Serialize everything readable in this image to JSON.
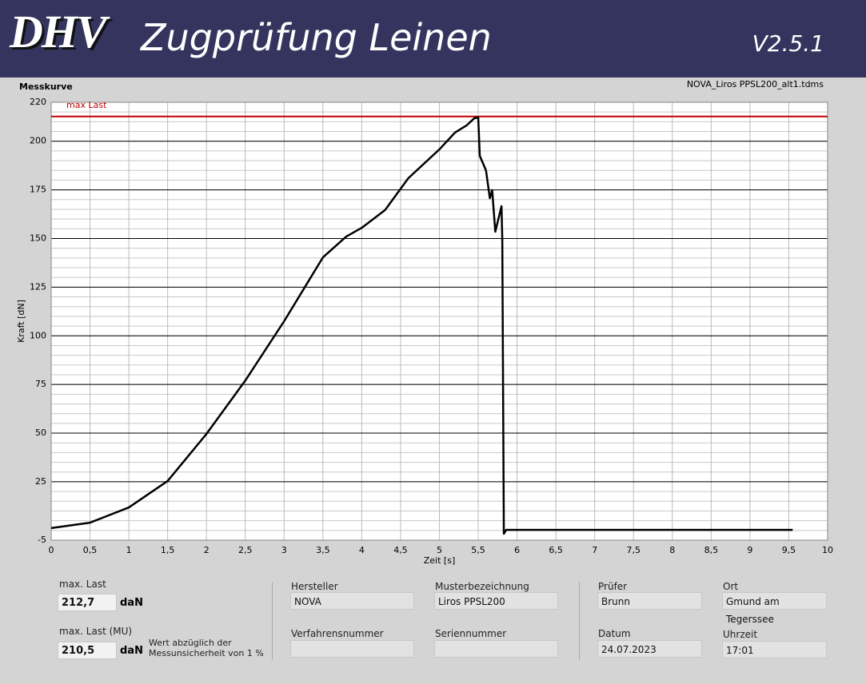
{
  "header": {
    "logo": "DHV",
    "title": "Zugprüfung Leinen",
    "version": "V2.5.1"
  },
  "chart_data": {
    "type": "line",
    "title": "Messkurve",
    "subtitle": "NOVA_Liros PPSL200_alt1.tdms",
    "x_label": "Zeit [s]",
    "y_label": "Kraft [dN]",
    "xlim": [
      0,
      10
    ],
    "ylim": [
      -5,
      220
    ],
    "xticks": [
      0,
      {
        "value": 0.5,
        "label": "0,5"
      },
      1,
      {
        "value": 1.5,
        "label": "1,5"
      },
      2,
      {
        "value": 2.5,
        "label": "2,5"
      },
      3,
      {
        "value": 3.5,
        "label": "3,5"
      },
      4,
      {
        "value": 4.5,
        "label": "4,5"
      },
      5,
      {
        "value": 5.5,
        "label": "5,5"
      },
      6,
      {
        "value": 6.5,
        "label": "6,5"
      },
      7,
      {
        "value": 7.5,
        "label": "7,5"
      },
      8,
      {
        "value": 8.5,
        "label": "8,5"
      },
      9,
      {
        "value": 9.5,
        "label": "9,5"
      },
      10
    ],
    "yticks": [
      -5,
      25,
      50,
      75,
      100,
      125,
      150,
      175,
      200,
      220
    ],
    "yminor": 5,
    "grid": true,
    "color": "#000000",
    "x": [
      0,
      0.5,
      1.0,
      1.5,
      2.0,
      2.5,
      3.0,
      3.5,
      3.8,
      4.0,
      4.3,
      4.6,
      5.0,
      5.2,
      5.35,
      5.45,
      5.5,
      5.52,
      5.6,
      5.65,
      5.68,
      5.72,
      5.8,
      5.81,
      5.83,
      5.86,
      9.55
    ],
    "values": [
      1.2,
      4,
      11.8,
      25.4,
      49.6,
      77,
      107.5,
      140.3,
      151,
      155.5,
      164.6,
      181,
      195.8,
      204.4,
      208.1,
      211.8,
      212.2,
      192.5,
      185,
      170.7,
      174.8,
      153.5,
      166.6,
      149.4,
      -1.7,
      0.3,
      0.3
    ],
    "reference_lines": [
      {
        "label": "max Last",
        "value": 212.7,
        "color": "#c00000"
      }
    ]
  },
  "results": {
    "max_label": "max. Last",
    "max_value": "212,7",
    "max_unit": "daN",
    "mu_label": "max. Last (MU)",
    "mu_value": "210,5",
    "mu_unit": "daN",
    "mu_note": "Wert abzüglich der Messunsicherheit von 1 %"
  },
  "fields": {
    "hersteller": {
      "label": "Hersteller",
      "value": "NOVA"
    },
    "muster": {
      "label": "Musterbezeichnung",
      "value": "Liros PPSL200"
    },
    "verfahren": {
      "label": "Verfahrensnummer"
    },
    "serie": {
      "label": "Seriennummer"
    },
    "pruefer": {
      "label": "Prüfer",
      "value": "Brunn"
    },
    "ort": {
      "label": "Ort",
      "value": "Gmund am Tegerssee"
    },
    "datum": {
      "label": "Datum",
      "value": "24.07.2023"
    },
    "uhrzeit": {
      "label": "Uhrzeit",
      "value": "17:01"
    }
  }
}
